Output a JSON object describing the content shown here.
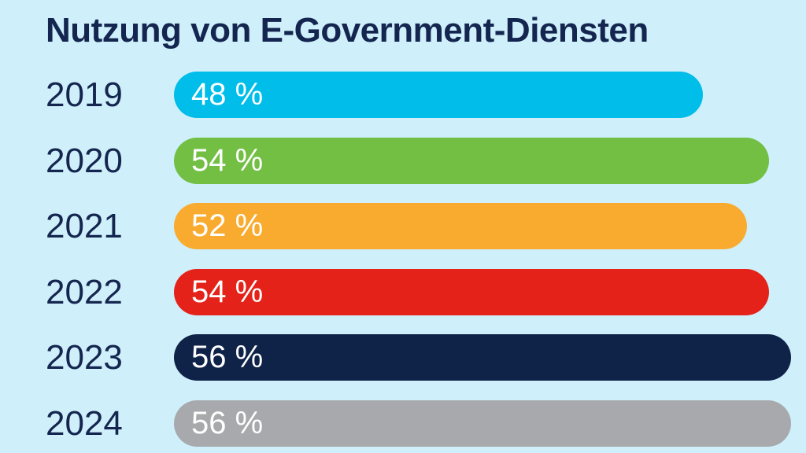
{
  "chart_data": {
    "type": "bar",
    "orientation": "horizontal",
    "title": "Nutzung von E-Government-Diensten",
    "xlabel": "",
    "ylabel": "",
    "unit": "%",
    "categories": [
      "2019",
      "2020",
      "2021",
      "2022",
      "2023",
      "2024"
    ],
    "values": [
      48,
      54,
      52,
      54,
      56,
      56
    ],
    "value_labels": [
      "48 %",
      "54 %",
      "52 %",
      "54 %",
      "56 %",
      "56 %"
    ],
    "colors": [
      "#00bde9",
      "#72bf44",
      "#f9ab30",
      "#e42219",
      "#0f2248",
      "#a7a9ac"
    ],
    "xlim": [
      0,
      56
    ],
    "grid": false,
    "legend": "none"
  }
}
